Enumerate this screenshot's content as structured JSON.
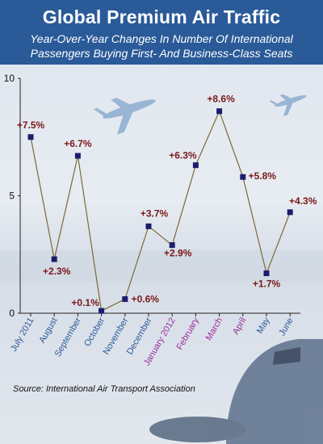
{
  "header": {
    "title": "Global Premium Air Traffic",
    "subtitle_line1": "Year-Over-Year Changes In Number Of International",
    "subtitle_line2": "Passengers Buying First- And Business-Class Seats"
  },
  "source": "Source: International Air Transport Association",
  "colors": {
    "header_bg": "#2a5a98",
    "line": "#7a6a35",
    "marker": "#1c1c6e",
    "value_label": "#7a1818",
    "tick_2011": "#2a5a98",
    "tick_2012": "#9a2e9a"
  },
  "chart_data": {
    "type": "line",
    "title": "Global Premium Air Traffic",
    "subtitle": "Year-Over-Year Changes In Number Of International Passengers Buying First- And Business-Class Seats",
    "xlabel": "",
    "ylabel": "",
    "categories": [
      "July 2011",
      "August",
      "September",
      "October",
      "November",
      "December",
      "January 2012",
      "February",
      "March",
      "April",
      "May",
      "June"
    ],
    "values": [
      7.5,
      2.3,
      6.7,
      0.1,
      0.6,
      3.7,
      2.9,
      6.3,
      8.6,
      5.8,
      1.7,
      4.3
    ],
    "labels": [
      "+7.5%",
      "+2.3%",
      "+6.7%",
      "+0.1%",
      "+0.6%",
      "+3.7%",
      "+2.9%",
      "+6.3%",
      "+8.6%",
      "+5.8%",
      "+1.7%",
      "+4.3%"
    ],
    "ylim": [
      0,
      10
    ],
    "yticks": [
      0,
      5,
      10
    ],
    "grid": false,
    "legend": "none"
  }
}
